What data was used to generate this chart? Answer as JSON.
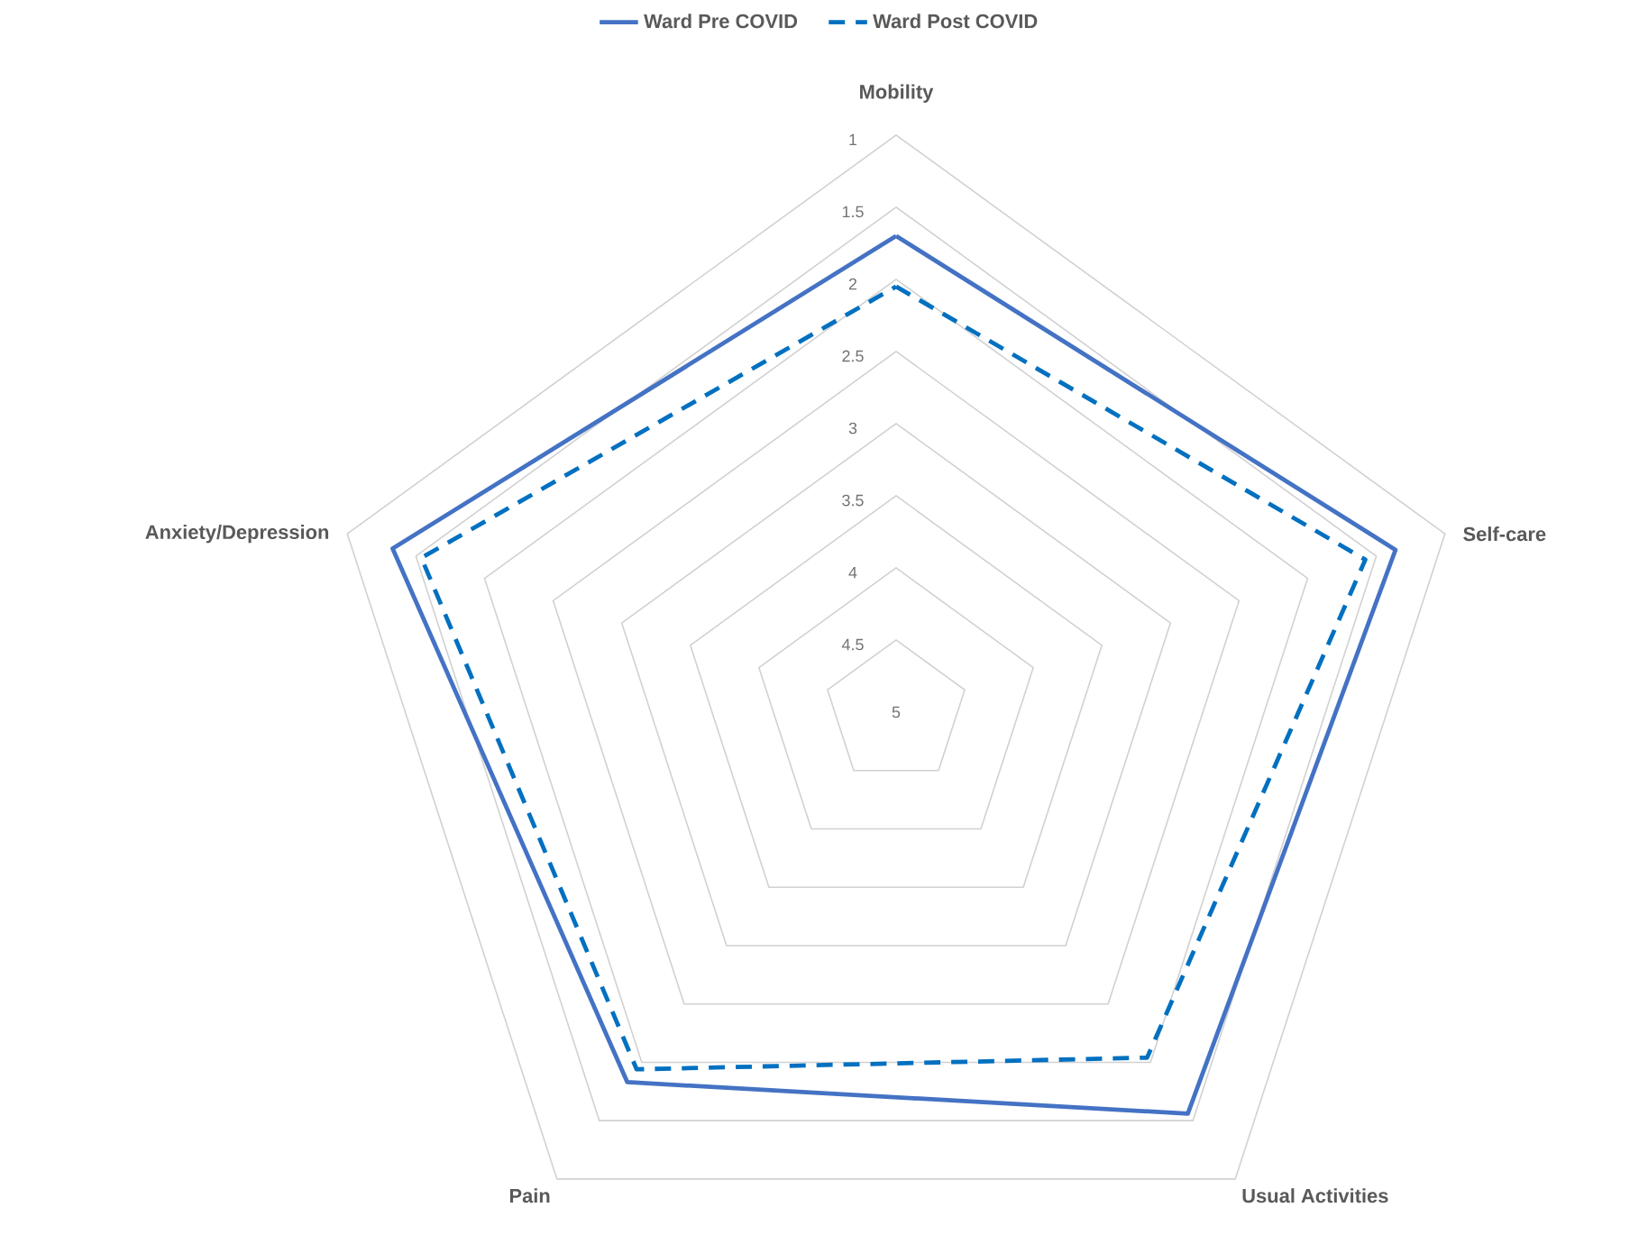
{
  "chart_data": {
    "type": "radar",
    "categories": [
      "Mobility",
      "Self-care",
      "Usual Activities",
      "Pain",
      "Anxiety/Depression"
    ],
    "series": [
      {
        "name": "Ward Pre COVID",
        "color": "#4472c4",
        "line_style": "solid",
        "values": [
          1.7,
          1.36,
          1.56,
          1.83,
          1.33
        ]
      },
      {
        "name": "Ward Post COVID",
        "color": "#0070c0",
        "line_style": "dashed",
        "values": [
          2.05,
          1.58,
          2.04,
          1.94,
          1.54
        ]
      }
    ],
    "ylim": [
      5,
      1
    ],
    "yticks": [
      1,
      1.5,
      2,
      2.5,
      3,
      3.5,
      4,
      4.5,
      5
    ],
    "grid": true,
    "legend": "top"
  }
}
